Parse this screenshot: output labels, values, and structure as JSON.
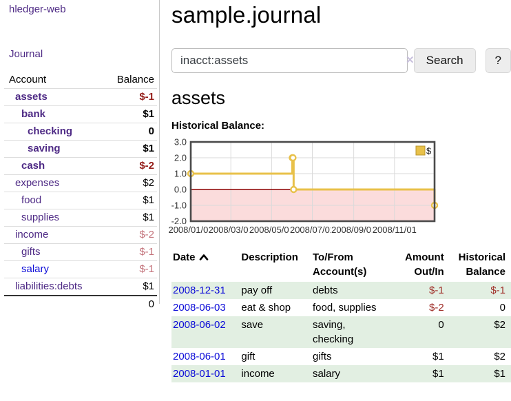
{
  "app": {
    "brand": "hledger-web",
    "nav_journal": "Journal"
  },
  "sidebar": {
    "columns": {
      "account": "Account",
      "balance": "Balance"
    },
    "accounts": [
      {
        "label": "assets",
        "depth": 1,
        "bold": true,
        "balance": "$-1",
        "balance_style": "neg-strong",
        "label_style": "visited"
      },
      {
        "label": "bank",
        "depth": 2,
        "bold": true,
        "balance": "$1",
        "balance_style": "",
        "label_style": "visited"
      },
      {
        "label": "checking",
        "depth": 3,
        "bold": true,
        "balance": "0",
        "balance_style": "",
        "label_style": "visited"
      },
      {
        "label": "saving",
        "depth": 3,
        "bold": true,
        "balance": "$1",
        "balance_style": "",
        "label_style": "visited"
      },
      {
        "label": "cash",
        "depth": 2,
        "bold": true,
        "balance": "$-2",
        "balance_style": "neg-strong",
        "label_style": "visited"
      },
      {
        "label": "expenses",
        "depth": 1,
        "bold": false,
        "balance": "$2",
        "balance_style": "",
        "label_style": "visited"
      },
      {
        "label": "food",
        "depth": 2,
        "bold": false,
        "balance": "$1",
        "balance_style": "",
        "label_style": "visited"
      },
      {
        "label": "supplies",
        "depth": 2,
        "bold": false,
        "balance": "$1",
        "balance_style": "",
        "label_style": "visited"
      },
      {
        "label": "income",
        "depth": 1,
        "bold": false,
        "balance": "$-2",
        "balance_style": "neg-light",
        "label_style": "visited"
      },
      {
        "label": "gifts",
        "depth": 2,
        "bold": false,
        "balance": "$-1",
        "balance_style": "neg-light",
        "label_style": "visited"
      },
      {
        "label": "salary",
        "depth": 2,
        "bold": false,
        "balance": "$-1",
        "balance_style": "neg-light",
        "label_style": "new"
      },
      {
        "label": "liabilities:debts",
        "depth": 1,
        "bold": false,
        "balance": "$1",
        "balance_style": "",
        "label_style": "visited"
      }
    ],
    "total": "0"
  },
  "header": {
    "title": "sample.journal"
  },
  "search": {
    "value": "inacct:assets",
    "clear_icon": "✕",
    "button_label": "Search",
    "help_label": "?"
  },
  "account_page": {
    "title": "assets",
    "chart_label": "Historical Balance:"
  },
  "chart_data": {
    "type": "line",
    "title": "Historical Balance",
    "style": "step-after",
    "x_start": "2008-01-01",
    "x_end": "2008-12-31",
    "ylim": [
      -2,
      3
    ],
    "y_ticks": [
      "3.0",
      "2.0",
      "1.0",
      "0.0",
      "-1.0",
      "-2.0"
    ],
    "x_ticks": [
      {
        "label": "2008/01/01",
        "date": "2008-01-01"
      },
      {
        "label": "2008/03/01",
        "date": "2008-03-01"
      },
      {
        "label": "2008/05/01",
        "date": "2008-05-01"
      },
      {
        "label": "2008/07/01",
        "date": "2008-07-01"
      },
      {
        "label": "2008/09/01",
        "date": "2008-09-01"
      },
      {
        "label": "2008/11/01",
        "date": "2008-11-01"
      }
    ],
    "series": [
      {
        "name": "$",
        "color": "#e8c14a",
        "points": [
          [
            "2008-01-01",
            1
          ],
          [
            "2008-06-01",
            2
          ],
          [
            "2008-06-02",
            2
          ],
          [
            "2008-06-03",
            0
          ],
          [
            "2008-12-31",
            -1
          ]
        ]
      }
    ],
    "legend": [
      {
        "label": "$",
        "color": "#e8c14a"
      }
    ],
    "legend_position": "top-right",
    "grid": true,
    "negative_region_fill": "#fbdcdc",
    "zero_line_color": "#8b0000"
  },
  "register": {
    "columns": [
      {
        "label": "Date",
        "sort": "ascending"
      },
      {
        "label": "Description"
      },
      {
        "label": "To/From Account(s)"
      },
      {
        "label": "Amount Out/In"
      },
      {
        "label": "Historical Balance"
      }
    ],
    "rows": [
      {
        "date": "2008-12-31",
        "description": "pay off",
        "accounts": "debts",
        "amount": "$-1",
        "amount_neg": true,
        "balance": "$-1",
        "balance_neg": true
      },
      {
        "date": "2008-06-03",
        "description": "eat & shop",
        "accounts": "food, supplies",
        "amount": "$-2",
        "amount_neg": true,
        "balance": "0",
        "balance_neg": false
      },
      {
        "date": "2008-06-02",
        "description": "save",
        "accounts": "saving, checking",
        "amount": "0",
        "amount_neg": false,
        "balance": "$2",
        "balance_neg": false
      },
      {
        "date": "2008-06-01",
        "description": "gift",
        "accounts": "gifts",
        "amount": "$1",
        "amount_neg": false,
        "balance": "$2",
        "balance_neg": false
      },
      {
        "date": "2008-01-01",
        "description": "income",
        "accounts": "salary",
        "amount": "$1",
        "amount_neg": false,
        "balance": "$1",
        "balance_neg": false
      }
    ]
  },
  "colors": {
    "link_visited": "#4e2a85",
    "link_new": "#0c0cd8",
    "negative_strong": "#96201c",
    "negative_light": "#c4747c",
    "negative_table": "#9e2b25",
    "row_green": "#e2efe2",
    "chart_gold": "#e8c14a",
    "chart_negative_fill": "#fbdcdc",
    "chart_zero_line": "#8b0000"
  }
}
